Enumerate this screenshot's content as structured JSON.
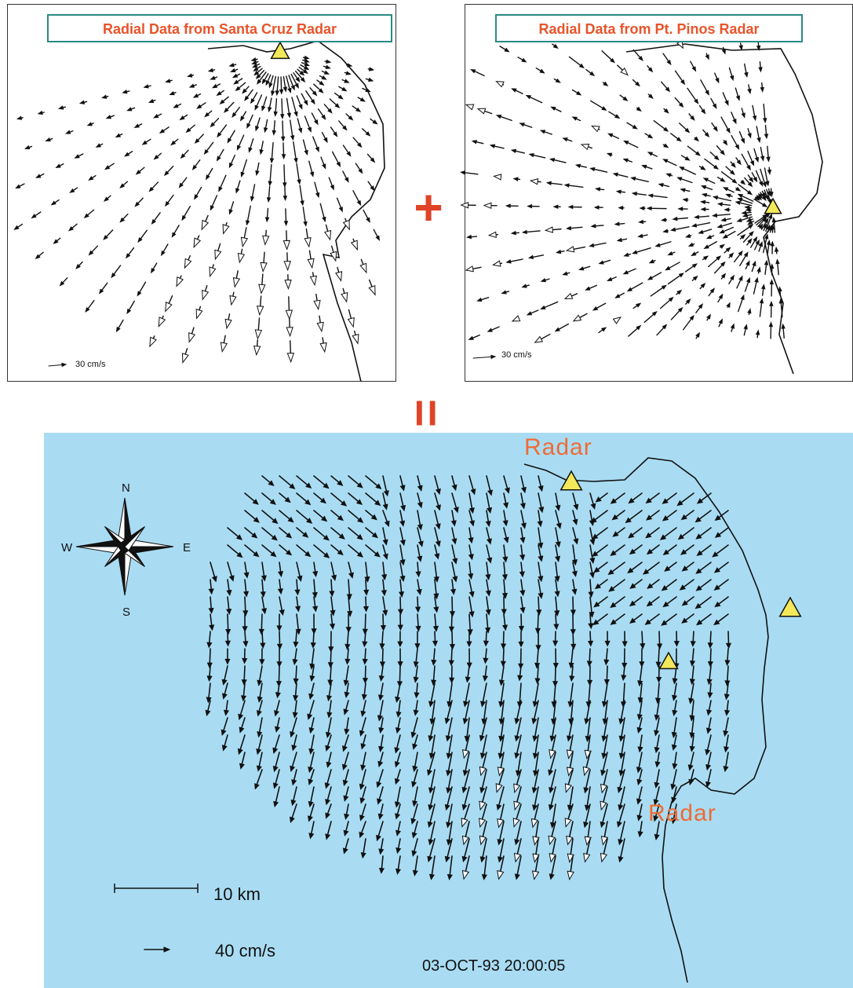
{
  "panels": [
    {
      "id": "santa-cruz",
      "title": "Radial Data from Santa Cruz Radar",
      "scale_label": "30 cm/s"
    },
    {
      "id": "pt-pinos",
      "title": "Radial Data from Pt. Pinos Radar",
      "scale_label": "30 cm/s"
    }
  ],
  "operators": {
    "plus": "+",
    "equals": "="
  },
  "map": {
    "radar_labels": [
      "Radar",
      "Radar"
    ],
    "compass": {
      "n": "N",
      "s": "S",
      "e": "E",
      "w": "W"
    },
    "distance_scale": "10 km",
    "velocity_scale": "40 cm/s",
    "timestamp": "03-OCT-93 20:00:05"
  },
  "colors": {
    "title_text": "#e8542a",
    "title_border": "#2a8a86",
    "operator": "#e04327",
    "ocean": "#a9dcf3",
    "radar_marker": "#f2e85a",
    "radar_label": "#ef6b35",
    "vector": "#111111"
  },
  "icons": [
    "radar-triangle-icon",
    "compass-rose-icon",
    "velocity-arrow-icon"
  ]
}
